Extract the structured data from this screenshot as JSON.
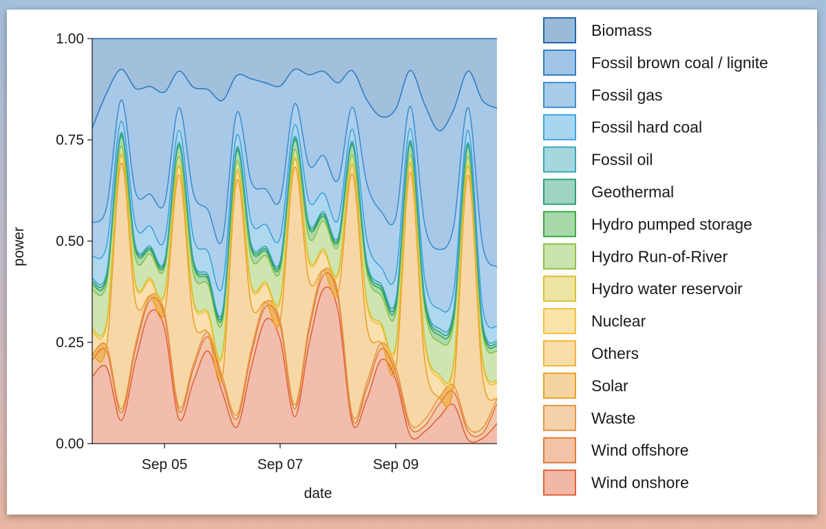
{
  "chart_data": {
    "type": "area",
    "stacked": true,
    "normalized": true,
    "xlabel": "date",
    "ylabel": "power",
    "xlim": [
      "2025-09-03T18:00",
      "2025-09-10T18:00"
    ],
    "ylim": [
      0,
      1
    ],
    "yticks": [
      0.0,
      0.25,
      0.5,
      0.75,
      1.0
    ],
    "ytick_labels": [
      "0.00",
      "0.25",
      "0.50",
      "0.75",
      "1.00"
    ],
    "xtick_labels": [
      {
        "date": "2025-09-05T00:00",
        "label": "Sep 05"
      },
      {
        "date": "2025-09-07T00:00",
        "label": "Sep 07"
      },
      {
        "date": "2025-09-09T00:00",
        "label": "Sep 09"
      }
    ],
    "grid": false,
    "legend_position": "right",
    "x": [
      "2025-09-03T18:00",
      "2025-09-04T00:00",
      "2025-09-04T06:00",
      "2025-09-04T12:00",
      "2025-09-04T18:00",
      "2025-09-05T00:00",
      "2025-09-05T06:00",
      "2025-09-05T12:00",
      "2025-09-05T18:00",
      "2025-09-06T00:00",
      "2025-09-06T06:00",
      "2025-09-06T12:00",
      "2025-09-06T18:00",
      "2025-09-07T00:00",
      "2025-09-07T06:00",
      "2025-09-07T12:00",
      "2025-09-07T18:00",
      "2025-09-08T00:00",
      "2025-09-08T06:00",
      "2025-09-08T12:00",
      "2025-09-08T18:00",
      "2025-09-09T00:00",
      "2025-09-09T06:00",
      "2025-09-09T12:00",
      "2025-09-09T18:00",
      "2025-09-10T00:00",
      "2025-09-10T06:00",
      "2025-09-10T12:00",
      "2025-09-10T18:00"
    ],
    "series": [
      {
        "name": "Wind onshore",
        "color": "#e0623a",
        "values": [
          0.12,
          0.14,
          0.06,
          0.2,
          0.33,
          0.28,
          0.06,
          0.14,
          0.2,
          0.1,
          0.04,
          0.17,
          0.28,
          0.22,
          0.07,
          0.22,
          0.33,
          0.3,
          0.05,
          0.08,
          0.15,
          0.1,
          0.02,
          0.02,
          0.04,
          0.06,
          0.01,
          0.01,
          0.04
        ]
      },
      {
        "name": "Wind offshore",
        "color": "#e27a3a",
        "values": [
          0.03,
          0.03,
          0.02,
          0.03,
          0.03,
          0.03,
          0.02,
          0.03,
          0.03,
          0.02,
          0.02,
          0.03,
          0.03,
          0.03,
          0.02,
          0.03,
          0.03,
          0.03,
          0.01,
          0.02,
          0.02,
          0.01,
          0.02,
          0.01,
          0.02,
          0.02,
          0.02,
          0.01,
          0.04
        ]
      },
      {
        "name": "Waste",
        "color": "#e69645",
        "values": [
          0.01,
          0.01,
          0.01,
          0.01,
          0.01,
          0.01,
          0.01,
          0.01,
          0.01,
          0.01,
          0.01,
          0.01,
          0.01,
          0.01,
          0.01,
          0.01,
          0.01,
          0.01,
          0.01,
          0.01,
          0.01,
          0.01,
          0.01,
          0.01,
          0.01,
          0.01,
          0.01,
          0.01,
          0.01
        ]
      },
      {
        "name": "Solar",
        "color": "#eb9f2b",
        "values": [
          0.0,
          0.0,
          0.64,
          0.1,
          0.0,
          0.0,
          0.57,
          0.1,
          0.0,
          0.0,
          0.57,
          0.1,
          0.0,
          0.0,
          0.62,
          0.1,
          0.0,
          0.0,
          0.6,
          0.1,
          0.0,
          0.0,
          0.63,
          0.1,
          0.0,
          0.0,
          0.62,
          0.1,
          0.0
        ]
      },
      {
        "name": "Others",
        "color": "#f0b43d",
        "values": [
          0.04,
          0.04,
          0.02,
          0.04,
          0.04,
          0.04,
          0.02,
          0.04,
          0.04,
          0.04,
          0.02,
          0.04,
          0.04,
          0.04,
          0.02,
          0.04,
          0.04,
          0.04,
          0.02,
          0.04,
          0.03,
          0.03,
          0.02,
          0.03,
          0.03,
          0.03,
          0.02,
          0.03,
          0.03
        ]
      },
      {
        "name": "Nuclear",
        "color": "#f2c23f",
        "values": [
          0.0,
          0.0,
          0.0,
          0.0,
          0.0,
          0.0,
          0.0,
          0.0,
          0.0,
          0.0,
          0.0,
          0.0,
          0.0,
          0.0,
          0.0,
          0.0,
          0.0,
          0.0,
          0.0,
          0.0,
          0.0,
          0.0,
          0.0,
          0.0,
          0.0,
          0.0,
          0.0,
          0.0,
          0.0
        ]
      },
      {
        "name": "Hydro water reservoir",
        "color": "#d8c032",
        "values": [
          0.005,
          0.005,
          0.005,
          0.005,
          0.005,
          0.005,
          0.005,
          0.005,
          0.005,
          0.005,
          0.005,
          0.005,
          0.005,
          0.005,
          0.005,
          0.005,
          0.005,
          0.005,
          0.005,
          0.005,
          0.005,
          0.005,
          0.005,
          0.005,
          0.005,
          0.005,
          0.005,
          0.005,
          0.005
        ]
      },
      {
        "name": "Hydro Run-of-River",
        "color": "#8cc046",
        "values": [
          0.07,
          0.07,
          0.02,
          0.06,
          0.06,
          0.06,
          0.02,
          0.06,
          0.06,
          0.06,
          0.02,
          0.06,
          0.06,
          0.06,
          0.02,
          0.05,
          0.06,
          0.06,
          0.02,
          0.05,
          0.05,
          0.05,
          0.02,
          0.05,
          0.05,
          0.06,
          0.02,
          0.05,
          0.06
        ]
      },
      {
        "name": "Hydro pumped storage",
        "color": "#3aa843",
        "values": [
          0.01,
          0.01,
          0.025,
          0.02,
          0.01,
          0.01,
          0.025,
          0.02,
          0.01,
          0.01,
          0.025,
          0.02,
          0.01,
          0.01,
          0.025,
          0.02,
          0.01,
          0.01,
          0.025,
          0.01,
          0.01,
          0.01,
          0.025,
          0.01,
          0.01,
          0.01,
          0.025,
          0.01,
          0.01
        ]
      },
      {
        "name": "Geothermal",
        "color": "#2a9d7a",
        "values": [
          0.005,
          0.005,
          0.005,
          0.005,
          0.005,
          0.005,
          0.005,
          0.005,
          0.005,
          0.005,
          0.005,
          0.005,
          0.005,
          0.005,
          0.005,
          0.005,
          0.005,
          0.005,
          0.005,
          0.005,
          0.005,
          0.005,
          0.005,
          0.005,
          0.005,
          0.005,
          0.005,
          0.005,
          0.005
        ]
      },
      {
        "name": "Fossil oil",
        "color": "#3aa6b8",
        "values": [
          0.005,
          0.005,
          0.005,
          0.005,
          0.005,
          0.005,
          0.005,
          0.005,
          0.005,
          0.005,
          0.005,
          0.005,
          0.005,
          0.005,
          0.005,
          0.005,
          0.005,
          0.005,
          0.005,
          0.005,
          0.005,
          0.005,
          0.005,
          0.005,
          0.005,
          0.005,
          0.005,
          0.005,
          0.005
        ]
      },
      {
        "name": "Fossil hard coal",
        "color": "#3fa3dc",
        "values": [
          0.04,
          0.05,
          0.03,
          0.05,
          0.05,
          0.05,
          0.03,
          0.05,
          0.05,
          0.05,
          0.03,
          0.05,
          0.05,
          0.05,
          0.03,
          0.05,
          0.04,
          0.04,
          0.03,
          0.04,
          0.03,
          0.04,
          0.03,
          0.03,
          0.03,
          0.03,
          0.03,
          0.03,
          0.03
        ]
      },
      {
        "name": "Fossil gas",
        "color": "#3d8dd0",
        "values": [
          0.06,
          0.07,
          0.055,
          0.08,
          0.08,
          0.09,
          0.055,
          0.1,
          0.09,
          0.09,
          0.055,
          0.09,
          0.08,
          0.08,
          0.055,
          0.08,
          0.08,
          0.09,
          0.055,
          0.1,
          0.1,
          0.09,
          0.055,
          0.09,
          0.09,
          0.1,
          0.055,
          0.12,
          0.12
        ]
      },
      {
        "name": "Fossil brown coal / lignite",
        "color": "#2e7dc4",
        "values": [
          0.17,
          0.21,
          0.08,
          0.25,
          0.27,
          0.27,
          0.09,
          0.24,
          0.26,
          0.27,
          0.09,
          0.23,
          0.24,
          0.24,
          0.09,
          0.2,
          0.18,
          0.22,
          0.09,
          0.15,
          0.17,
          0.17,
          0.09,
          0.2,
          0.18,
          0.18,
          0.09,
          0.28,
          0.32
        ]
      },
      {
        "name": "Biomass",
        "color": "#2166ac",
        "values": [
          0.16,
          0.1,
          0.08,
          0.12,
          0.12,
          0.13,
          0.08,
          0.11,
          0.11,
          0.12,
          0.09,
          0.09,
          0.1,
          0.1,
          0.08,
          0.08,
          0.07,
          0.1,
          0.08,
          0.11,
          0.14,
          0.11,
          0.08,
          0.11,
          0.14,
          0.11,
          0.08,
          0.12,
          0.14
        ]
      }
    ]
  }
}
